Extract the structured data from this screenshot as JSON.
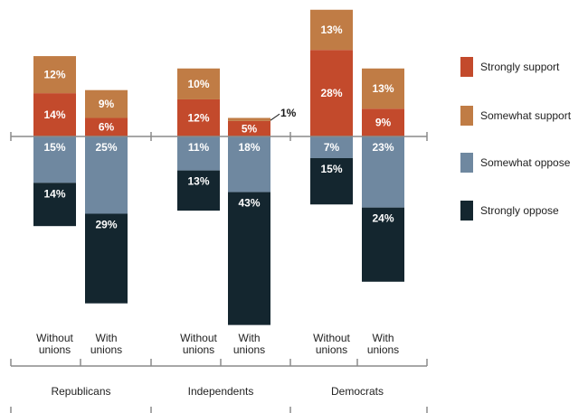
{
  "chart_data": {
    "type": "bar",
    "stacked": "diverging",
    "groups": [
      "Republicans",
      "Independents",
      "Democrats"
    ],
    "categories": [
      {
        "group": "Republicans",
        "label": [
          "Without",
          "unions"
        ]
      },
      {
        "group": "Republicans",
        "label": [
          "With",
          "unions"
        ]
      },
      {
        "group": "Independents",
        "label": [
          "Without",
          "unions"
        ]
      },
      {
        "group": "Independents",
        "label": [
          "With",
          "unions"
        ]
      },
      {
        "group": "Democrats",
        "label": [
          "Without",
          "unions"
        ]
      },
      {
        "group": "Democrats",
        "label": [
          "With",
          "unions"
        ]
      }
    ],
    "series": [
      {
        "name": "Strongly support",
        "side": "support",
        "color": "#c34a2c",
        "values": [
          14,
          6,
          12,
          5,
          28,
          9
        ]
      },
      {
        "name": "Somewhat support",
        "side": "support",
        "color": "#c07c45",
        "values": [
          12,
          9,
          10,
          1,
          13,
          13
        ]
      },
      {
        "name": "Somewhat oppose",
        "side": "oppose",
        "color": "#6f88a0",
        "values": [
          15,
          25,
          11,
          18,
          7,
          23
        ]
      },
      {
        "name": "Strongly oppose",
        "side": "oppose",
        "color": "#14262f",
        "values": [
          14,
          29,
          13,
          43,
          15,
          24
        ]
      }
    ],
    "value_suffix": "%",
    "legend_position": "right"
  }
}
